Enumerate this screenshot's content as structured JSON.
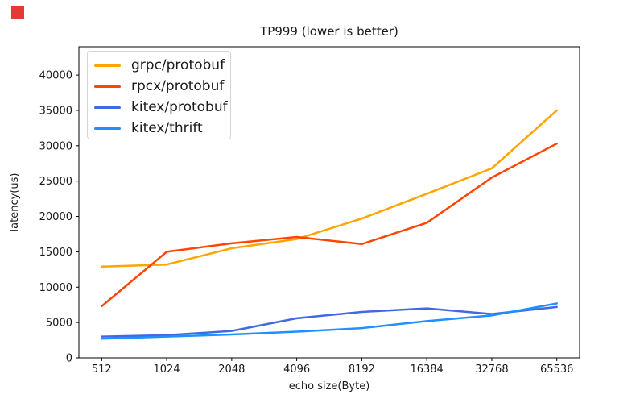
{
  "marker": {
    "name": "red-square",
    "color": "#e53935"
  },
  "chart_data": {
    "type": "line",
    "title": "TP999 (lower is better)",
    "xlabel": "echo size(Byte)",
    "ylabel": "latency(us)",
    "categories": [
      "512",
      "1024",
      "2048",
      "4096",
      "8192",
      "16384",
      "32768",
      "65536"
    ],
    "y_ticks": [
      0,
      5000,
      10000,
      15000,
      20000,
      25000,
      30000,
      35000,
      40000
    ],
    "ylim": [
      0,
      44000
    ],
    "grid": false,
    "legend_position": "upper left",
    "axis_color": "#000000",
    "series": [
      {
        "name": "grpc/protobuf",
        "color": "#ffa500",
        "values": [
          12900,
          13200,
          15500,
          16800,
          19700,
          23200,
          26800,
          35000
        ]
      },
      {
        "name": "rpcx/protobuf",
        "color": "#ff4500",
        "values": [
          7300,
          15000,
          16200,
          17100,
          16100,
          19100,
          25500,
          30300
        ]
      },
      {
        "name": "kitex/protobuf",
        "color": "#4169e1",
        "values": [
          3000,
          3200,
          3800,
          5600,
          6500,
          7000,
          6200,
          7200
        ]
      },
      {
        "name": "kitex/thrift",
        "color": "#1e90ff",
        "values": [
          2700,
          3000,
          3300,
          3700,
          4200,
          5200,
          6000,
          7700
        ]
      }
    ]
  }
}
